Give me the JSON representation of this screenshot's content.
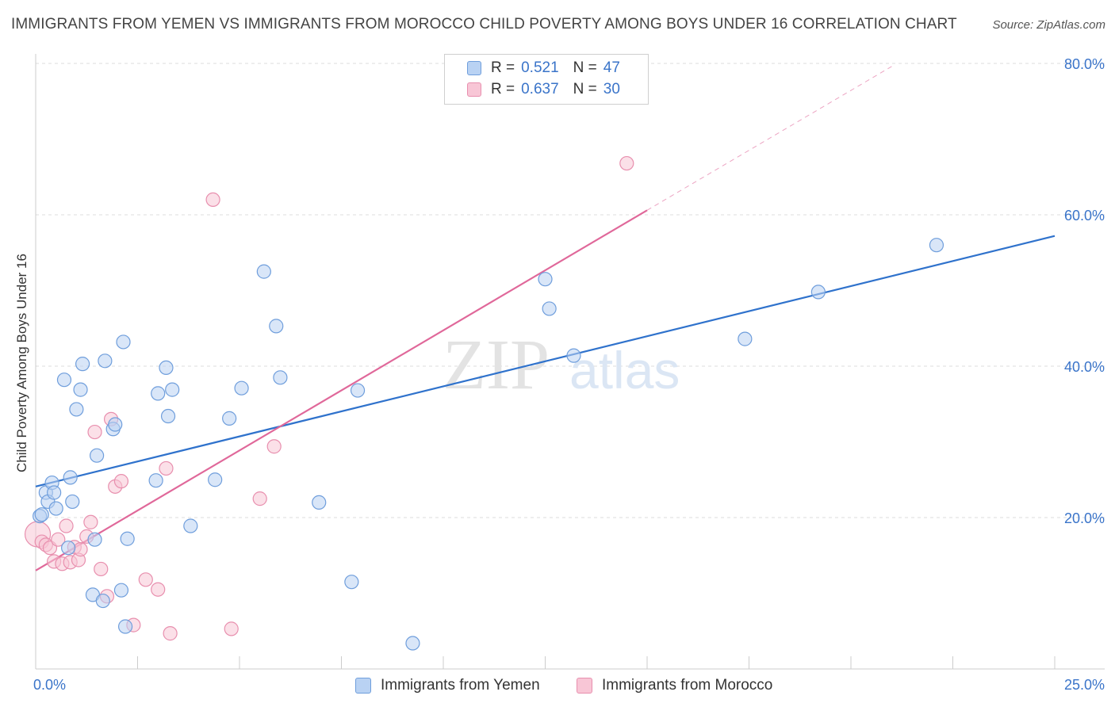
{
  "title": "IMMIGRANTS FROM YEMEN VS IMMIGRANTS FROM MOROCCO CHILD POVERTY AMONG BOYS UNDER 16 CORRELATION CHART",
  "source": "Source: ZipAtlas.com",
  "watermark": {
    "zip": "ZIP",
    "atlas": "atlas"
  },
  "legend": {
    "yemen": {
      "r_label": "R =",
      "r_value": "0.521",
      "n_label": "N =",
      "n_value": "47"
    },
    "morocco": {
      "r_label": "R =",
      "r_value": "0.637",
      "n_label": "N =",
      "n_value": "30"
    }
  },
  "colors": {
    "yemen_fill": "#b9d2f3",
    "yemen_stroke": "#6f9edc",
    "yemen_line": "#2f72cc",
    "morocco_fill": "#f8c6d6",
    "morocco_stroke": "#e88fae",
    "morocco_line": "#e0689a",
    "grid": "#dddddd",
    "tick_label": "#3a74c9"
  },
  "chart_data": {
    "type": "scatter",
    "title": "IMMIGRANTS FROM YEMEN VS IMMIGRANTS FROM MOROCCO CHILD POVERTY AMONG BOYS UNDER 16 CORRELATION CHART",
    "xlabel": "",
    "ylabel": "Child Poverty Among Boys Under 16",
    "xlim": [
      0,
      25
    ],
    "ylim": [
      0,
      80
    ],
    "x_tick_labels": [
      "0.0%",
      "25.0%"
    ],
    "y_ticks": [
      20,
      40,
      60,
      80
    ],
    "y_tick_labels": [
      "20.0%",
      "40.0%",
      "60.0%",
      "80.0%"
    ],
    "legend_position": "top-center",
    "series": [
      {
        "name": "Immigrants from Yemen",
        "r": 0.521,
        "n": 47,
        "trend": {
          "x": [
            0,
            25
          ],
          "y": [
            24.1,
            57.2
          ],
          "dashed_from_x": null
        },
        "points": [
          [
            0.1,
            20.2
          ],
          [
            0.15,
            20.4
          ],
          [
            0.25,
            23.3
          ],
          [
            0.3,
            22.1
          ],
          [
            0.4,
            24.6
          ],
          [
            0.45,
            23.3
          ],
          [
            0.5,
            21.2
          ],
          [
            0.7,
            38.2
          ],
          [
            0.8,
            16.0
          ],
          [
            0.85,
            25.3
          ],
          [
            0.9,
            22.1
          ],
          [
            1.0,
            34.3
          ],
          [
            1.1,
            36.9
          ],
          [
            1.15,
            40.3
          ],
          [
            1.45,
            17.1
          ],
          [
            1.5,
            28.2
          ],
          [
            1.4,
            9.8
          ],
          [
            1.65,
            9.0
          ],
          [
            1.7,
            40.7
          ],
          [
            1.9,
            31.7
          ],
          [
            1.95,
            32.3
          ],
          [
            2.1,
            10.4
          ],
          [
            2.15,
            43.2
          ],
          [
            2.2,
            5.6
          ],
          [
            2.25,
            17.2
          ],
          [
            2.95,
            24.9
          ],
          [
            3.0,
            36.4
          ],
          [
            3.2,
            39.8
          ],
          [
            3.25,
            33.4
          ],
          [
            3.35,
            36.9
          ],
          [
            3.8,
            18.9
          ],
          [
            4.4,
            25.0
          ],
          [
            4.75,
            33.1
          ],
          [
            5.05,
            37.1
          ],
          [
            5.6,
            52.5
          ],
          [
            5.9,
            45.3
          ],
          [
            6.0,
            38.5
          ],
          [
            6.95,
            22.0
          ],
          [
            7.75,
            11.5
          ],
          [
            7.9,
            36.8
          ],
          [
            9.25,
            3.4
          ],
          [
            12.5,
            51.5
          ],
          [
            12.6,
            47.6
          ],
          [
            13.2,
            41.4
          ],
          [
            17.4,
            43.6
          ],
          [
            19.2,
            49.8
          ],
          [
            22.1,
            56.0
          ]
        ]
      },
      {
        "name": "Immigrants from Morocco",
        "r": 0.637,
        "n": 30,
        "trend": {
          "x": [
            0,
            15
          ],
          "y": [
            13.0,
            60.6
          ],
          "dashed_until_x": 21.0,
          "dashed_until_y": 79.6
        },
        "points": [
          [
            0.05,
            17.8
          ],
          [
            0.15,
            16.8
          ],
          [
            0.25,
            16.4
          ],
          [
            0.35,
            16.0
          ],
          [
            0.45,
            14.2
          ],
          [
            0.55,
            17.1
          ],
          [
            0.65,
            13.9
          ],
          [
            0.75,
            18.9
          ],
          [
            0.85,
            14.1
          ],
          [
            0.95,
            16.1
          ],
          [
            1.05,
            14.4
          ],
          [
            1.1,
            15.8
          ],
          [
            1.25,
            17.5
          ],
          [
            1.35,
            19.4
          ],
          [
            1.45,
            31.3
          ],
          [
            1.6,
            13.2
          ],
          [
            1.75,
            9.6
          ],
          [
            1.85,
            33.0
          ],
          [
            1.95,
            24.1
          ],
          [
            2.1,
            24.8
          ],
          [
            2.4,
            5.8
          ],
          [
            2.7,
            11.8
          ],
          [
            3.0,
            10.5
          ],
          [
            3.2,
            26.5
          ],
          [
            3.3,
            4.7
          ],
          [
            4.35,
            62.0
          ],
          [
            4.8,
            5.3
          ],
          [
            5.5,
            22.5
          ],
          [
            5.85,
            29.4
          ],
          [
            14.5,
            66.8
          ]
        ]
      }
    ]
  },
  "bottom_legend": {
    "yemen_label": "Immigrants from Yemen",
    "morocco_label": "Immigrants from Morocco"
  }
}
